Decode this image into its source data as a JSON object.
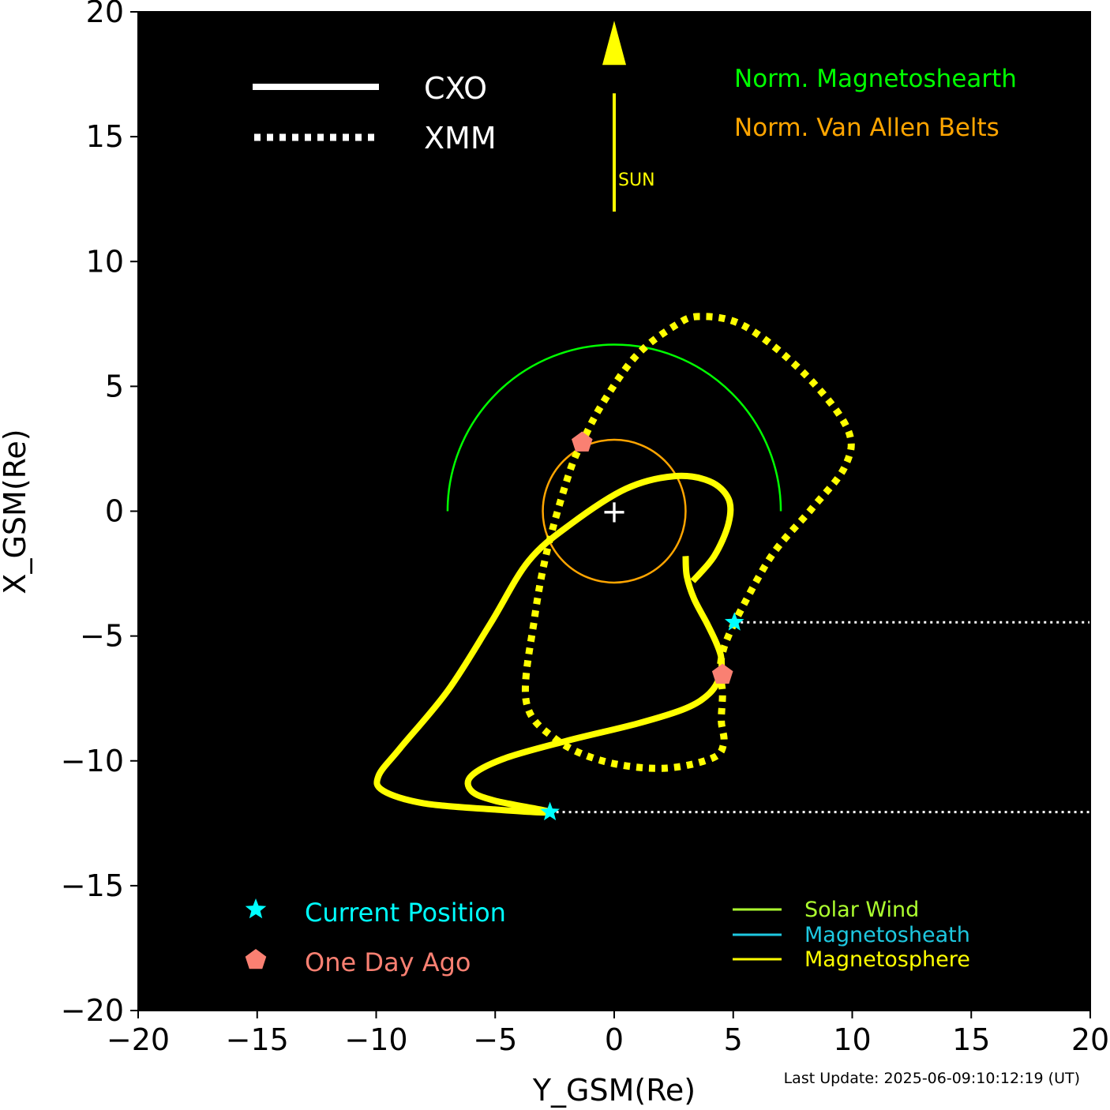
{
  "chart_data": {
    "type": "line",
    "title": "",
    "xlabel": "Y_GSM(Re)",
    "ylabel": "X_GSM(Re)",
    "xlim": [
      -20,
      20
    ],
    "ylim": [
      -20,
      20
    ],
    "xticks": [
      -20,
      -15,
      -10,
      -5,
      0,
      5,
      10,
      15,
      20
    ],
    "yticks": [
      -20,
      -15,
      -10,
      -5,
      0,
      5,
      10,
      15,
      20
    ],
    "xtick_labels": [
      "−20",
      "−15",
      "−10",
      "−5",
      "0",
      "5",
      "10",
      "15",
      "20"
    ],
    "ytick_labels": [
      "−20",
      "−15",
      "−10",
      "−5",
      "0",
      "5",
      "10",
      "15",
      "20"
    ],
    "background": "#000000",
    "series": [
      {
        "name": "CXO",
        "style": "solid",
        "color": "#ffff00",
        "points": [
          [
            3.0,
            -1.8
          ],
          [
            3.05,
            -2.6
          ],
          [
            3.35,
            -3.5
          ],
          [
            3.9,
            -4.5
          ],
          [
            4.3,
            -5.3
          ],
          [
            4.5,
            -5.9
          ],
          [
            4.45,
            -6.6
          ],
          [
            4.0,
            -7.3
          ],
          [
            3.0,
            -7.9
          ],
          [
            1.0,
            -8.5
          ],
          [
            -2.0,
            -9.2
          ],
          [
            -4.6,
            -9.9
          ],
          [
            -6.0,
            -10.6
          ],
          [
            -6.0,
            -11.2
          ],
          [
            -5.0,
            -11.6
          ],
          [
            -2.7,
            -12.05
          ],
          [
            -5.0,
            -11.95
          ],
          [
            -8.0,
            -11.7
          ],
          [
            -9.7,
            -11.2
          ],
          [
            -9.9,
            -10.6
          ],
          [
            -9.0,
            -9.5
          ],
          [
            -7.0,
            -7.2
          ],
          [
            -5.2,
            -4.5
          ],
          [
            -3.6,
            -2.0
          ],
          [
            -1.8,
            -0.5
          ],
          [
            0.5,
            0.9
          ],
          [
            2.5,
            1.4
          ],
          [
            4.0,
            1.2
          ],
          [
            4.8,
            0.5
          ],
          [
            4.8,
            -0.5
          ],
          [
            4.2,
            -1.8
          ],
          [
            3.3,
            -2.8
          ]
        ]
      },
      {
        "name": "XMM",
        "style": "dotted",
        "color": "#ffff00",
        "points": [
          [
            5.05,
            -4.45
          ],
          [
            4.6,
            -5.5
          ],
          [
            4.45,
            -6.4
          ],
          [
            4.55,
            -7.3
          ],
          [
            4.5,
            -8.4
          ],
          [
            4.6,
            -9.3
          ],
          [
            4.1,
            -9.9
          ],
          [
            2.0,
            -10.3
          ],
          [
            -0.5,
            -10.0
          ],
          [
            -2.5,
            -9.1
          ],
          [
            -3.7,
            -7.6
          ],
          [
            -3.35,
            -4.3
          ],
          [
            -2.8,
            -1.5
          ],
          [
            -1.9,
            1.5
          ],
          [
            -1.35,
            2.75
          ],
          [
            -0.5,
            4.3
          ],
          [
            0.9,
            6.2
          ],
          [
            2.5,
            7.4
          ],
          [
            3.6,
            7.8
          ],
          [
            5.5,
            7.4
          ],
          [
            8.0,
            5.5
          ],
          [
            9.8,
            3.3
          ],
          [
            9.7,
            1.8
          ],
          [
            8.3,
            0.1
          ],
          [
            6.6,
            -1.8
          ],
          [
            5.05,
            -4.45
          ]
        ]
      }
    ],
    "current_position": [
      [
        -2.7,
        -12.05
      ],
      [
        5.05,
        -4.45
      ]
    ],
    "one_day_ago": [
      [
        4.55,
        -6.55
      ],
      [
        -1.35,
        2.75
      ]
    ],
    "magnetosheath_arc": {
      "center": [
        0,
        0
      ],
      "radius": 7,
      "color": "#00ff00"
    },
    "van_allen_belt": {
      "center": [
        0,
        0
      ],
      "radius": 3,
      "color": "#ffa500"
    },
    "earth_marker": "+",
    "sun_arrow": {
      "from": [
        0,
        12
      ],
      "to": [
        0,
        18
      ],
      "label": "SUN",
      "color": "#ffff00"
    },
    "dotted_lines_to_edge": [
      -12.05,
      -4.45
    ],
    "legends": {
      "line_style": [
        {
          "label": "CXO",
          "style": "solid"
        },
        {
          "label": "XMM",
          "style": "dotted"
        }
      ],
      "regions": [
        {
          "label": "Norm. Magnetoshearth",
          "color": "#00ff00"
        },
        {
          "label": "Norm. Van Allen Belts",
          "color": "#ffa500"
        }
      ],
      "markers": [
        {
          "label": "Current Position",
          "color": "#00ffff",
          "marker": "star"
        },
        {
          "label": "One Day Ago",
          "color": "#fa8072",
          "marker": "pentagon"
        }
      ],
      "environment": [
        {
          "label": "Solar Wind",
          "color": "#adff2f"
        },
        {
          "label": "Magnetosheath",
          "color": "#1ec8e0"
        },
        {
          "label": "Magnetosphere",
          "color": "#ffff00"
        }
      ]
    },
    "footnote": "Last Update: 2025-06-09:10:12:19 (UT)"
  }
}
